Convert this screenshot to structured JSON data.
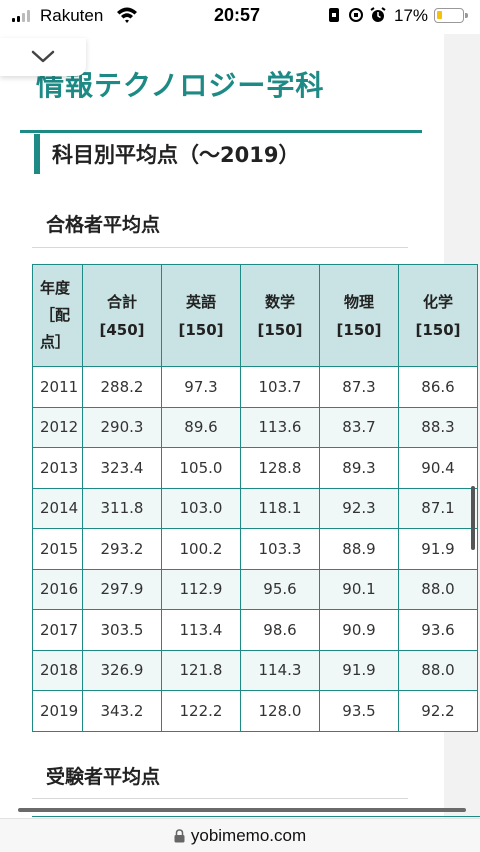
{
  "status_bar": {
    "carrier": "Rakuten",
    "time": "20:57",
    "battery_percent": "17%",
    "battery_level": 0.17,
    "icons": [
      "signal-icon",
      "wifi-icon",
      "portrait-lock-icon",
      "orientation-lock-icon",
      "alarm-icon",
      "battery-icon"
    ]
  },
  "page": {
    "site_title": "情報テクノロジー学科",
    "section_heading": "科目別平均点（〜2019）",
    "passers_heading": "合格者平均点",
    "examinees_heading": "受験者平均点",
    "colors": {
      "accent": "#1e8a85",
      "header_bg": "#c9e2e3",
      "row_alt_bg": "#f0f7f7"
    }
  },
  "table": {
    "headers": [
      {
        "lines": [
          "年度",
          "［配",
          "点］"
        ]
      },
      {
        "lines": [
          "合計",
          "[450]"
        ]
      },
      {
        "lines": [
          "英語",
          "[150]"
        ]
      },
      {
        "lines": [
          "数学",
          "[150]"
        ]
      },
      {
        "lines": [
          "物理",
          "[150]"
        ]
      },
      {
        "lines": [
          "化学",
          "[150]"
        ]
      }
    ],
    "rows": [
      [
        "2011",
        "288.2",
        "97.3",
        "103.7",
        "87.3",
        "86.6"
      ],
      [
        "2012",
        "290.3",
        "89.6",
        "113.6",
        "83.7",
        "88.3"
      ],
      [
        "2013",
        "323.4",
        "105.0",
        "128.8",
        "89.3",
        "90.4"
      ],
      [
        "2014",
        "311.8",
        "103.0",
        "118.1",
        "92.3",
        "87.1"
      ],
      [
        "2015",
        "293.2",
        "100.2",
        "103.3",
        "88.9",
        "91.9"
      ],
      [
        "2016",
        "297.9",
        "112.9",
        "95.6",
        "90.1",
        "88.0"
      ],
      [
        "2017",
        "303.5",
        "113.4",
        "98.6",
        "90.9",
        "93.6"
      ],
      [
        "2018",
        "326.9",
        "121.8",
        "114.3",
        "91.9",
        "88.0"
      ],
      [
        "2019",
        "343.2",
        "122.2",
        "128.0",
        "93.5",
        "92.2"
      ]
    ]
  },
  "browser": {
    "url": "yobimemo.com"
  }
}
